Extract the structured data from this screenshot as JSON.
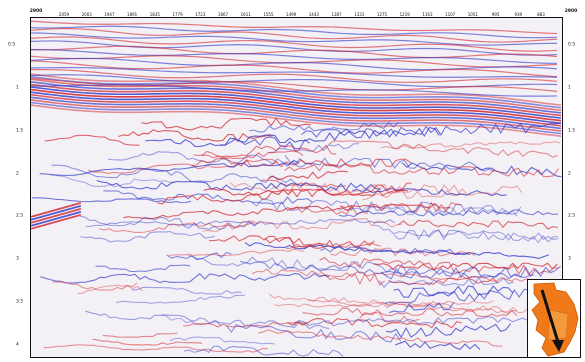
{
  "section": {
    "corner_left": "2900",
    "corner_right": "2900",
    "trace_labels": [
      "2059",
      "2003",
      "1947",
      "1891",
      "1835",
      "1779",
      "1723",
      "1667",
      "1611",
      "1555",
      "1499",
      "1443",
      "1387",
      "1331",
      "1275",
      "1219",
      "1163",
      "1107",
      "1051",
      "995",
      "939",
      "883"
    ],
    "time_labels": [
      "0.5",
      "1",
      "1.5",
      "2",
      "2.5",
      "3",
      "3.5",
      "4"
    ],
    "colors": {
      "positive": "#d2222a",
      "negative": "#2a33c8",
      "background": "#f4f1f6",
      "frame": "#111111"
    }
  },
  "inset_map": {
    "icon": "location-map-icon",
    "colors": {
      "survey": "#f07a1a",
      "arrow": "#111111"
    }
  }
}
